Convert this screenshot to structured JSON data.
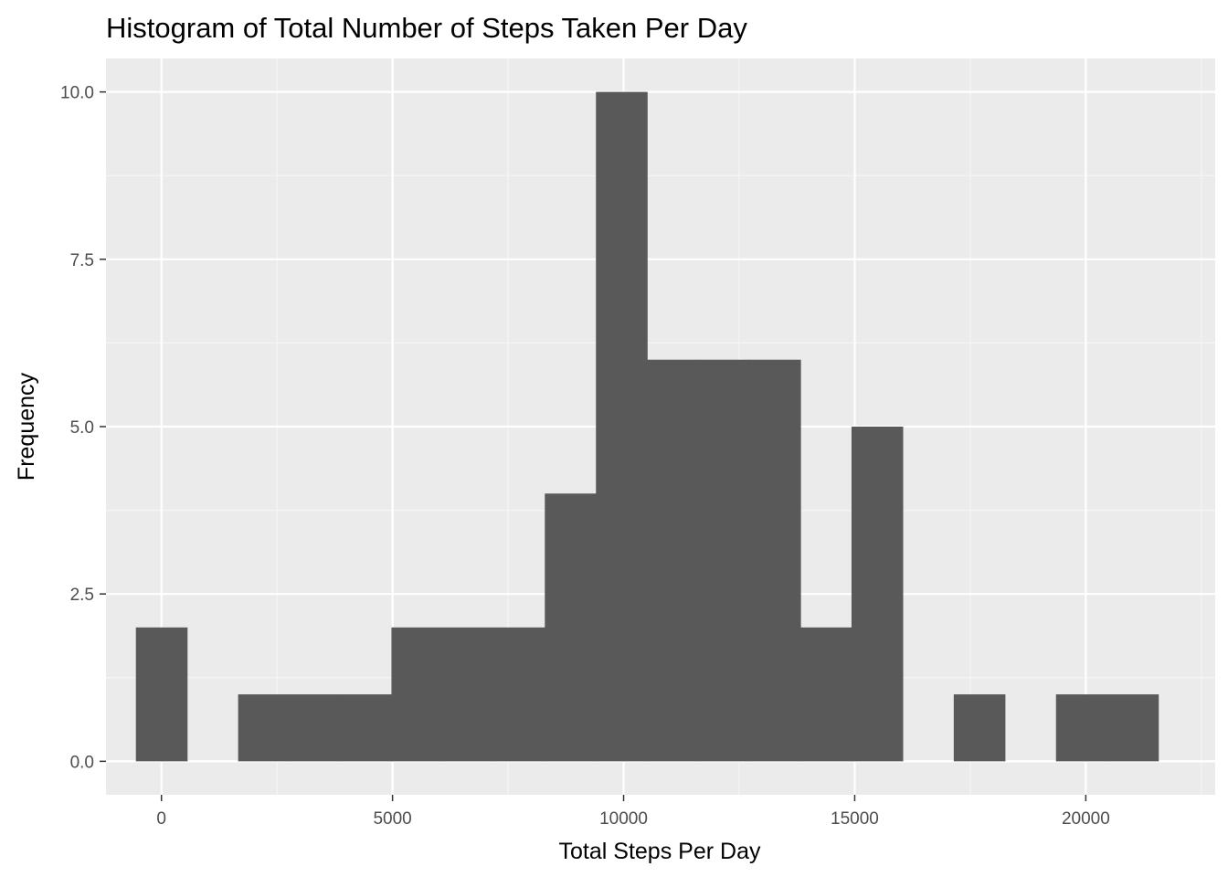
{
  "chart_data": {
    "type": "bar",
    "subtype": "histogram",
    "title": "Histogram of Total Number of Steps Taken Per Day",
    "xlabel": "Total Steps Per Day",
    "ylabel": "Frequency",
    "xlim": [
      -1200,
      22800
    ],
    "ylim": [
      -0.5,
      10.5
    ],
    "bin_width": 1106,
    "x_ticks": [
      {
        "value": 0,
        "label": "0"
      },
      {
        "value": 5000,
        "label": "5000"
      },
      {
        "value": 10000,
        "label": "10000"
      },
      {
        "value": 15000,
        "label": "15000"
      },
      {
        "value": 20000,
        "label": "20000"
      }
    ],
    "y_ticks": [
      {
        "value": 0,
        "label": "0.0"
      },
      {
        "value": 2.5,
        "label": "2.5"
      },
      {
        "value": 5,
        "label": "5.0"
      },
      {
        "value": 7.5,
        "label": "7.5"
      },
      {
        "value": 10,
        "label": "10.0"
      }
    ],
    "bins": [
      {
        "x_center": 0,
        "count": 2
      },
      {
        "x_center": 1106,
        "count": 0
      },
      {
        "x_center": 2212,
        "count": 1
      },
      {
        "x_center": 3318,
        "count": 1
      },
      {
        "x_center": 4424,
        "count": 1
      },
      {
        "x_center": 5530,
        "count": 2
      },
      {
        "x_center": 6636,
        "count": 2
      },
      {
        "x_center": 7742,
        "count": 2
      },
      {
        "x_center": 8848,
        "count": 4
      },
      {
        "x_center": 9954,
        "count": 10
      },
      {
        "x_center": 11060,
        "count": 6
      },
      {
        "x_center": 12166,
        "count": 6
      },
      {
        "x_center": 13272,
        "count": 6
      },
      {
        "x_center": 14378,
        "count": 2
      },
      {
        "x_center": 15484,
        "count": 5
      },
      {
        "x_center": 16590,
        "count": 0
      },
      {
        "x_center": 17696,
        "count": 1
      },
      {
        "x_center": 18802,
        "count": 0
      },
      {
        "x_center": 19908,
        "count": 1
      },
      {
        "x_center": 21014,
        "count": 1
      }
    ],
    "grid": true,
    "colors": {
      "panel_background": "#ebebeb",
      "grid_major": "#ffffff",
      "grid_minor": "#f5f5f5",
      "bar_fill": "#595959",
      "tick_label": "#4d4d4d",
      "tick_mark": "#333333"
    }
  }
}
